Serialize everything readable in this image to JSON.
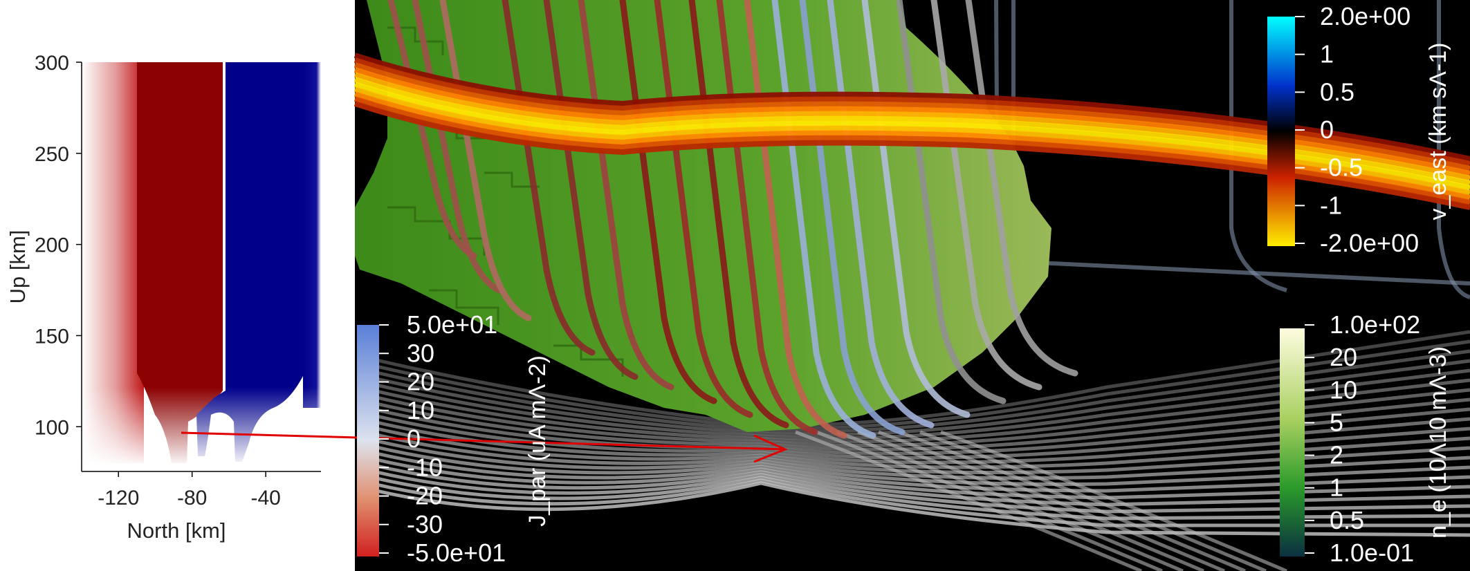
{
  "left_plot": {
    "xlabel": "North [km]",
    "ylabel": "Up [km]",
    "x_ticks": [
      "-120",
      "-80",
      "-40"
    ],
    "y_ticks": [
      "300",
      "250",
      "200",
      "150",
      "100"
    ],
    "x_tick_values": [
      -120,
      -80,
      -40
    ],
    "y_tick_values": [
      300,
      250,
      200,
      150,
      100
    ],
    "xlim": [
      -140,
      -10
    ],
    "ylim": [
      80,
      300
    ],
    "colors": {
      "positive": "#8b0000",
      "negative": "#00008b",
      "zero": "#ffffff"
    }
  },
  "colorbars": {
    "v_east": {
      "title": "v_east (km sΛ-1)",
      "labels": [
        "2.0e+00",
        "1",
        "0.5",
        "0",
        "-0.5",
        "-1",
        "-2.0e+00"
      ],
      "colors": [
        "#00ffff",
        "#0033cc",
        "#000000",
        "#cc2200",
        "#ffee00"
      ]
    },
    "j_par": {
      "title": "J_par (uA mΛ-2)",
      "labels": [
        "5.0e+01",
        "30",
        "20",
        "10",
        "0",
        "-10",
        "-20",
        "-30",
        "-5.0e+01"
      ],
      "colors": [
        "#5a7fd8",
        "#dde3ee",
        "#e09070",
        "#d02020"
      ]
    },
    "n_e": {
      "title": "n_e (10Λ10 mΛ-3)",
      "labels": [
        "1.0e+02",
        "20",
        "10",
        "5",
        "2",
        "1",
        "0.5",
        "1.0e-01"
      ],
      "colors": [
        "#fefce0",
        "#a8d060",
        "#2a9a2a",
        "#0a3040"
      ]
    }
  },
  "annotation": {
    "arrow_color": "#e00000"
  }
}
